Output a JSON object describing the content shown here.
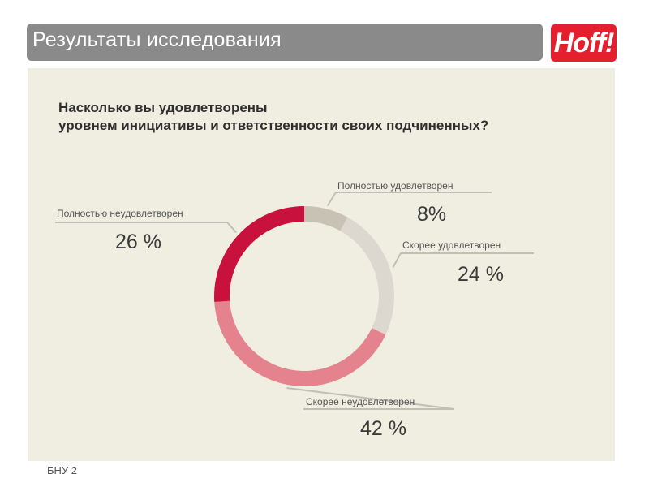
{
  "header": {
    "title": "Результаты исследования",
    "logo_text": "Hoff!",
    "bar_color": "#8a8a8a",
    "logo_color": "#e4202e"
  },
  "question": {
    "line1": "Насколько вы удовлетворены",
    "line2": "уровнем инициативы и ответственности своих подчиненных?"
  },
  "chart_data": {
    "type": "pie",
    "style": "donut",
    "categories": [
      "Полностью удовлетворен",
      "Скорее удовлетворен",
      "Скорее неудовлетворен",
      "Полностью неудовлетворен"
    ],
    "values": [
      8,
      24,
      42,
      26
    ],
    "value_labels": [
      "8%",
      "24 %",
      "42 %",
      "26 %"
    ],
    "colors": [
      "#c8c2b4",
      "#dcd8d0",
      "#e4828e",
      "#c8113d"
    ],
    "legend": "none"
  },
  "footer": {
    "text": "БНУ 2"
  }
}
